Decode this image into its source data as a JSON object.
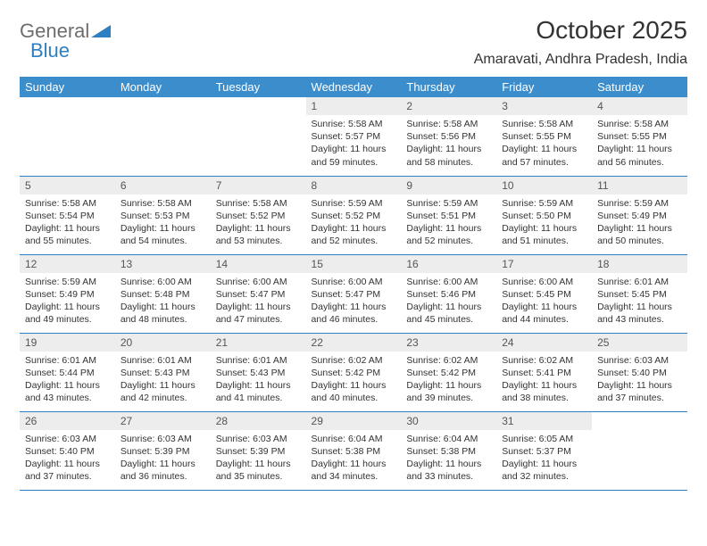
{
  "logo": {
    "text1": "General",
    "text2": "Blue"
  },
  "title": "October 2025",
  "location": "Amaravati, Andhra Pradesh, India",
  "colors": {
    "header_bg": "#3c8dcc",
    "header_text": "#ffffff",
    "daynum_bg": "#ededed",
    "border": "#2d7fc1",
    "logo_gray": "#6d6d6d",
    "logo_blue": "#2d7fc1"
  },
  "weekdays": [
    "Sunday",
    "Monday",
    "Tuesday",
    "Wednesday",
    "Thursday",
    "Friday",
    "Saturday"
  ],
  "weeks": [
    [
      null,
      null,
      null,
      {
        "n": "1",
        "sunrise": "5:58 AM",
        "sunset": "5:57 PM",
        "day_h": "11",
        "day_m": "59"
      },
      {
        "n": "2",
        "sunrise": "5:58 AM",
        "sunset": "5:56 PM",
        "day_h": "11",
        "day_m": "58"
      },
      {
        "n": "3",
        "sunrise": "5:58 AM",
        "sunset": "5:55 PM",
        "day_h": "11",
        "day_m": "57"
      },
      {
        "n": "4",
        "sunrise": "5:58 AM",
        "sunset": "5:55 PM",
        "day_h": "11",
        "day_m": "56"
      }
    ],
    [
      {
        "n": "5",
        "sunrise": "5:58 AM",
        "sunset": "5:54 PM",
        "day_h": "11",
        "day_m": "55"
      },
      {
        "n": "6",
        "sunrise": "5:58 AM",
        "sunset": "5:53 PM",
        "day_h": "11",
        "day_m": "54"
      },
      {
        "n": "7",
        "sunrise": "5:58 AM",
        "sunset": "5:52 PM",
        "day_h": "11",
        "day_m": "53"
      },
      {
        "n": "8",
        "sunrise": "5:59 AM",
        "sunset": "5:52 PM",
        "day_h": "11",
        "day_m": "52"
      },
      {
        "n": "9",
        "sunrise": "5:59 AM",
        "sunset": "5:51 PM",
        "day_h": "11",
        "day_m": "52"
      },
      {
        "n": "10",
        "sunrise": "5:59 AM",
        "sunset": "5:50 PM",
        "day_h": "11",
        "day_m": "51"
      },
      {
        "n": "11",
        "sunrise": "5:59 AM",
        "sunset": "5:49 PM",
        "day_h": "11",
        "day_m": "50"
      }
    ],
    [
      {
        "n": "12",
        "sunrise": "5:59 AM",
        "sunset": "5:49 PM",
        "day_h": "11",
        "day_m": "49"
      },
      {
        "n": "13",
        "sunrise": "6:00 AM",
        "sunset": "5:48 PM",
        "day_h": "11",
        "day_m": "48"
      },
      {
        "n": "14",
        "sunrise": "6:00 AM",
        "sunset": "5:47 PM",
        "day_h": "11",
        "day_m": "47"
      },
      {
        "n": "15",
        "sunrise": "6:00 AM",
        "sunset": "5:47 PM",
        "day_h": "11",
        "day_m": "46"
      },
      {
        "n": "16",
        "sunrise": "6:00 AM",
        "sunset": "5:46 PM",
        "day_h": "11",
        "day_m": "45"
      },
      {
        "n": "17",
        "sunrise": "6:00 AM",
        "sunset": "5:45 PM",
        "day_h": "11",
        "day_m": "44"
      },
      {
        "n": "18",
        "sunrise": "6:01 AM",
        "sunset": "5:45 PM",
        "day_h": "11",
        "day_m": "43"
      }
    ],
    [
      {
        "n": "19",
        "sunrise": "6:01 AM",
        "sunset": "5:44 PM",
        "day_h": "11",
        "day_m": "43"
      },
      {
        "n": "20",
        "sunrise": "6:01 AM",
        "sunset": "5:43 PM",
        "day_h": "11",
        "day_m": "42"
      },
      {
        "n": "21",
        "sunrise": "6:01 AM",
        "sunset": "5:43 PM",
        "day_h": "11",
        "day_m": "41"
      },
      {
        "n": "22",
        "sunrise": "6:02 AM",
        "sunset": "5:42 PM",
        "day_h": "11",
        "day_m": "40"
      },
      {
        "n": "23",
        "sunrise": "6:02 AM",
        "sunset": "5:42 PM",
        "day_h": "11",
        "day_m": "39"
      },
      {
        "n": "24",
        "sunrise": "6:02 AM",
        "sunset": "5:41 PM",
        "day_h": "11",
        "day_m": "38"
      },
      {
        "n": "25",
        "sunrise": "6:03 AM",
        "sunset": "5:40 PM",
        "day_h": "11",
        "day_m": "37"
      }
    ],
    [
      {
        "n": "26",
        "sunrise": "6:03 AM",
        "sunset": "5:40 PM",
        "day_h": "11",
        "day_m": "37"
      },
      {
        "n": "27",
        "sunrise": "6:03 AM",
        "sunset": "5:39 PM",
        "day_h": "11",
        "day_m": "36"
      },
      {
        "n": "28",
        "sunrise": "6:03 AM",
        "sunset": "5:39 PM",
        "day_h": "11",
        "day_m": "35"
      },
      {
        "n": "29",
        "sunrise": "6:04 AM",
        "sunset": "5:38 PM",
        "day_h": "11",
        "day_m": "34"
      },
      {
        "n": "30",
        "sunrise": "6:04 AM",
        "sunset": "5:38 PM",
        "day_h": "11",
        "day_m": "33"
      },
      {
        "n": "31",
        "sunrise": "6:05 AM",
        "sunset": "5:37 PM",
        "day_h": "11",
        "day_m": "32"
      },
      null
    ]
  ],
  "labels": {
    "sunrise": "Sunrise:",
    "sunset": "Sunset:",
    "daylight_pre": "Daylight:",
    "hours_word": "hours",
    "and_word": "and",
    "minutes_word": "minutes."
  }
}
